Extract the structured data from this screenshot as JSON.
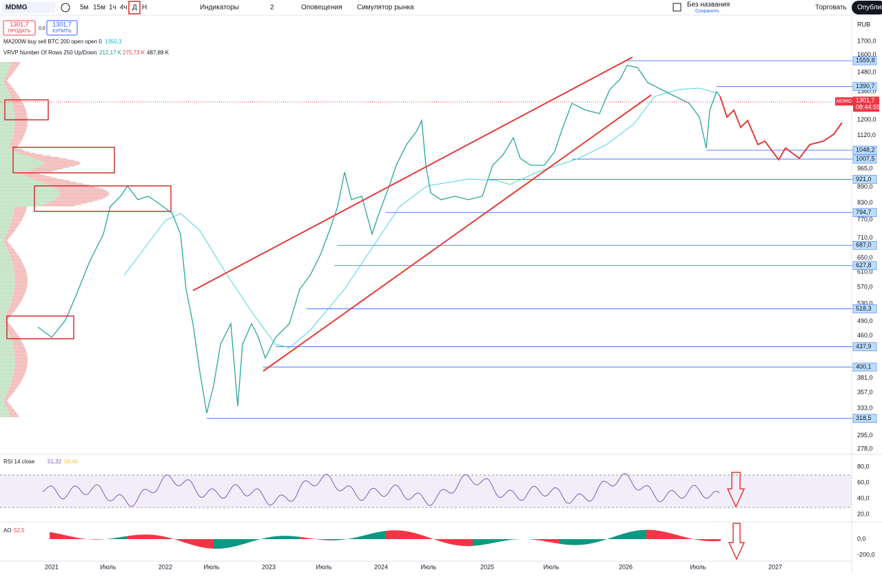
{
  "toolbar": {
    "symbol": "MDMG",
    "intervals": [
      "5м",
      "15м",
      "1ч",
      "4ч",
      "Д",
      "Н"
    ],
    "indicators": "Индикаторы",
    "layouts": "2",
    "alerts": "Оповещения",
    "replay": "Симулятор рынка",
    "layout_name": "Без названия",
    "save": "Сохранить",
    "trade": "Торговать",
    "publish": "Опублик"
  },
  "order": {
    "sell_price": "1301,7",
    "sell": "ПРОДАТЬ",
    "spread": "0,0",
    "buy_price": "1301,7",
    "buy": "КУПИТЬ"
  },
  "legend": {
    "ma": "MA200W buy sell BTC 200 open open 0",
    "ma_value": "1350,3",
    "vrvp": "VRVP Number Of Rows 250 Up/Down",
    "vrvp_up": "212,17 K",
    "vrvp_down": "275,73 K",
    "vrvp_total": "487,89 K"
  },
  "price_axis": {
    "currency": "RUB",
    "ticks": [
      "1700,0",
      "1600,0",
      "1480,0",
      "1360,0",
      "1200,0",
      "1120,0",
      "965,0",
      "890,0",
      "830,0",
      "770,0",
      "710,0",
      "650,0",
      "610,0",
      "570,0",
      "530,0",
      "490,0",
      "460,0",
      "381,0",
      "357,0",
      "333,0",
      "295,0",
      "278,0"
    ],
    "levels": [
      "1559,8",
      "1390,7",
      "1048,2",
      "1007,5",
      "921,0",
      "794,7",
      "687,0",
      "627,8",
      "518,3",
      "437,9",
      "400,1",
      "318,5"
    ],
    "current": {
      "symbol": "MDMG",
      "price": "1301,7",
      "countdown": "08:44:55"
    }
  },
  "rsi": {
    "title": "RSI 14 close",
    "value": "51,32",
    "ma": "58,46",
    "ticks": [
      "80,0",
      "60,0",
      "40,0",
      "20,0"
    ]
  },
  "ao": {
    "title": "AO",
    "value": "52,5",
    "ticks": [
      "0,0",
      "-200,0"
    ]
  },
  "time_axis": [
    "2021",
    "Июль",
    "2022",
    "Июль",
    "2023",
    "Июль",
    "2024",
    "Июль",
    "2025",
    "Июль",
    "2026",
    "Июль",
    "2027"
  ]
}
